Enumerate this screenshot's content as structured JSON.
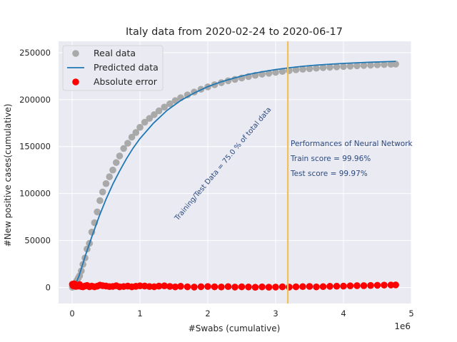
{
  "chart_data": {
    "type": "scatter",
    "title": "Italy data  from 2020-02-24 to 2020-06-17",
    "xlabel": "#Swabs (cumulative)",
    "ylabel": "#New positive cases(cumulative)",
    "x_offset_label": "1e6",
    "x_scale": 1000000,
    "xlim": [
      -200000,
      5000000
    ],
    "ylim": [
      -17000,
      262000
    ],
    "x_ticks": [
      0,
      1000000,
      2000000,
      3000000,
      4000000,
      5000000
    ],
    "x_tick_labels": [
      "0",
      "1",
      "2",
      "3",
      "4",
      "5"
    ],
    "y_ticks": [
      0,
      50000,
      100000,
      150000,
      200000,
      250000
    ],
    "y_tick_labels": [
      "0",
      "50000",
      "100000",
      "150000",
      "200000",
      "250000"
    ],
    "grid": true,
    "legend_position": "top-left",
    "series": [
      {
        "name": "Real data",
        "kind": "scatter",
        "color": "#a9a9a9",
        "x": [
          4000,
          10000,
          18000,
          28000,
          40000,
          55000,
          70000,
          90000,
          110000,
          135000,
          160000,
          190000,
          220000,
          255000,
          290000,
          330000,
          370000,
          410000,
          450000,
          500000,
          550000,
          600000,
          650000,
          700000,
          760000,
          820000,
          880000,
          940000,
          1000000,
          1070000,
          1140000,
          1210000,
          1280000,
          1360000,
          1440000,
          1520000,
          1600000,
          1700000,
          1800000,
          1900000,
          2000000,
          2100000,
          2200000,
          2300000,
          2400000,
          2500000,
          2600000,
          2700000,
          2800000,
          2900000,
          3000000,
          3100000,
          3200000,
          3300000,
          3400000,
          3500000,
          3600000,
          3700000,
          3800000,
          3900000,
          4000000,
          4100000,
          4200000,
          4300000,
          4400000,
          4500000,
          4600000,
          4700000,
          4770000
        ],
        "y": [
          229,
          650,
          1100,
          2000,
          3000,
          4600,
          7400,
          10100,
          12500,
          17700,
          24700,
          31500,
          41000,
          47000,
          59000,
          69000,
          80500,
          92500,
          101700,
          110600,
          117900,
          125000,
          133000,
          140000,
          148000,
          153500,
          160000,
          165000,
          170500,
          175900,
          180000,
          184000,
          188000,
          192000,
          195500,
          198900,
          202000,
          205000,
          208000,
          211000,
          213500,
          215800,
          218000,
          220000,
          221500,
          223000,
          224500,
          225800,
          227000,
          228000,
          229000,
          230000,
          230800,
          231700,
          232300,
          232900,
          233400,
          234000,
          234400,
          234800,
          235200,
          235600,
          236000,
          236300,
          236600,
          237000,
          237300,
          237600,
          237800
        ]
      },
      {
        "name": "Predicted data",
        "kind": "line",
        "color": "#1f77b4",
        "x": [
          30000,
          100000,
          200000,
          300000,
          400000,
          500000,
          600000,
          700000,
          800000,
          900000,
          1000000,
          1200000,
          1400000,
          1600000,
          1800000,
          2000000,
          2200000,
          2400000,
          2600000,
          2800000,
          3000000,
          3200000,
          3400000,
          3600000,
          3800000,
          4000000,
          4200000,
          4400000,
          4600000,
          4770000
        ],
        "y": [
          0,
          12000,
          35000,
          56000,
          76000,
          94000,
          110000,
          124000,
          137000,
          148500,
          158500,
          175000,
          188500,
          199000,
          207000,
          213800,
          219000,
          223200,
          226800,
          229600,
          232000,
          233900,
          235500,
          236700,
          237700,
          238500,
          239200,
          239800,
          240300,
          240700
        ]
      },
      {
        "name": "Absolute error",
        "kind": "scatter",
        "color": "#ff0000",
        "x": [
          4000,
          10000,
          18000,
          28000,
          40000,
          55000,
          70000,
          90000,
          110000,
          135000,
          160000,
          190000,
          220000,
          255000,
          290000,
          330000,
          370000,
          410000,
          450000,
          500000,
          550000,
          600000,
          650000,
          700000,
          760000,
          820000,
          880000,
          940000,
          1000000,
          1070000,
          1140000,
          1210000,
          1280000,
          1360000,
          1440000,
          1520000,
          1600000,
          1700000,
          1800000,
          1900000,
          2000000,
          2100000,
          2200000,
          2300000,
          2400000,
          2500000,
          2600000,
          2700000,
          2800000,
          2900000,
          3000000,
          3100000,
          3200000,
          3300000,
          3400000,
          3500000,
          3600000,
          3700000,
          3800000,
          3900000,
          4000000,
          4100000,
          4200000,
          4300000,
          4400000,
          4500000,
          4600000,
          4700000,
          4770000
        ],
        "y": [
          3500,
          2500,
          1800,
          4000,
          3000,
          1200,
          2600,
          1500,
          3200,
          1000,
          800,
          1600,
          2200,
          900,
          1500,
          800,
          1400,
          2600,
          2000,
          1600,
          1000,
          1200,
          1900,
          800,
          1100,
          1500,
          800,
          1300,
          1800,
          1600,
          1100,
          900,
          1500,
          1800,
          1200,
          700,
          1300,
          800,
          500,
          900,
          1100,
          800,
          600,
          1000,
          500,
          800,
          600,
          300,
          700,
          400,
          500,
          800,
          500,
          800,
          1000,
          1200,
          700,
          1000,
          1300,
          1400,
          1500,
          1800,
          2000,
          2000,
          2200,
          2400,
          2600,
          2700,
          2800
        ]
      }
    ],
    "vertical_line": {
      "x": 3180000,
      "color": "#f0c060"
    },
    "annotations": {
      "split_label": "Training/Test Data = 75.0 % of total data",
      "perf_title": "Performances of Neural Network",
      "train_score": "Train score = 99.96%",
      "test_score": "Test score = 99.97%"
    },
    "colors": {
      "plot_background": "#eaeaf2",
      "grid": "#ffffff",
      "annotation_text": "#2c4a7e"
    }
  }
}
